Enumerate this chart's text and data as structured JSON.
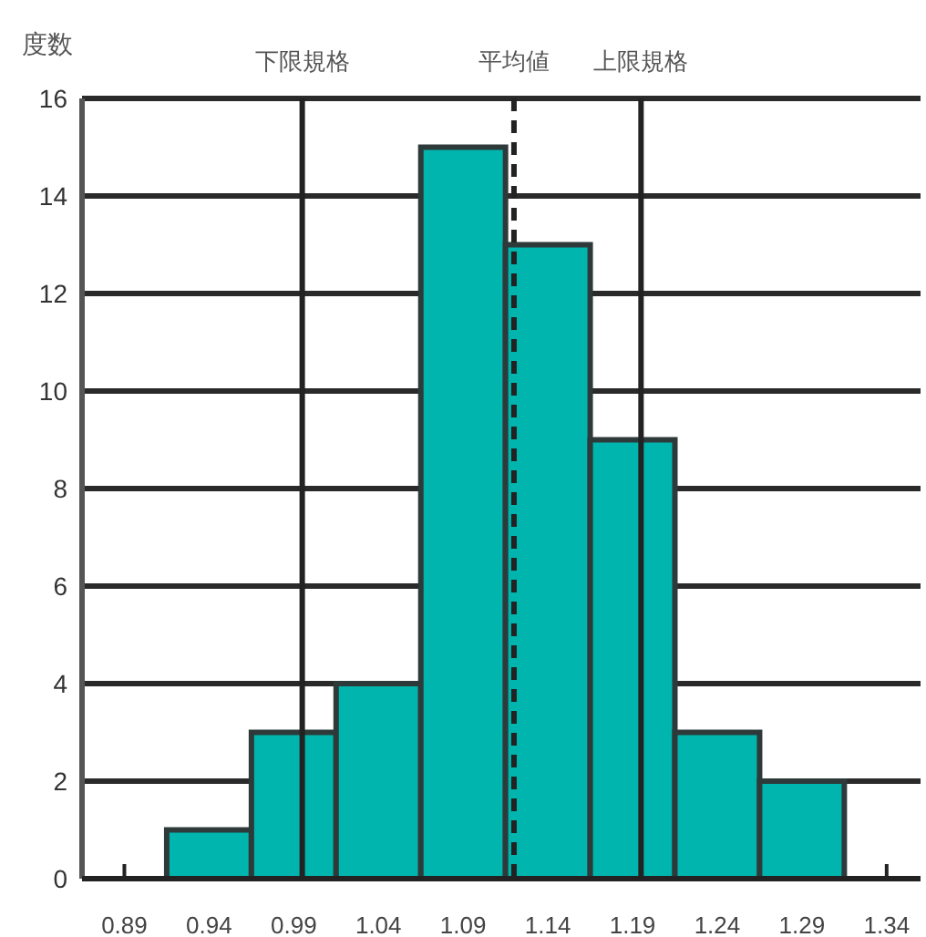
{
  "chart_data": {
    "type": "histogram",
    "ylabel": "度数",
    "bins": [
      0.915,
      0.965,
      1.015,
      1.065,
      1.115,
      1.165,
      1.215,
      1.265,
      1.315
    ],
    "values": [
      1,
      3,
      4,
      15,
      13,
      9,
      3,
      2
    ],
    "color": "#00b5ad",
    "xlim": [
      0.865,
      1.36
    ],
    "xticks": [
      0.89,
      0.94,
      0.99,
      1.04,
      1.09,
      1.14,
      1.19,
      1.24,
      1.29,
      1.34
    ],
    "ylim": [
      0,
      16
    ],
    "yticks": [
      0,
      2,
      4,
      6,
      8,
      10,
      12,
      14,
      16
    ],
    "grid": "y",
    "ref_lines": [
      {
        "axis": "x",
        "value": 0.995,
        "label": "下限規格",
        "line_style": "solid"
      },
      {
        "axis": "x",
        "value": 1.12,
        "label": "平均値",
        "line_style": "dashed"
      },
      {
        "axis": "x",
        "value": 1.195,
        "label": "上限規格",
        "line_style": "solid"
      }
    ]
  }
}
